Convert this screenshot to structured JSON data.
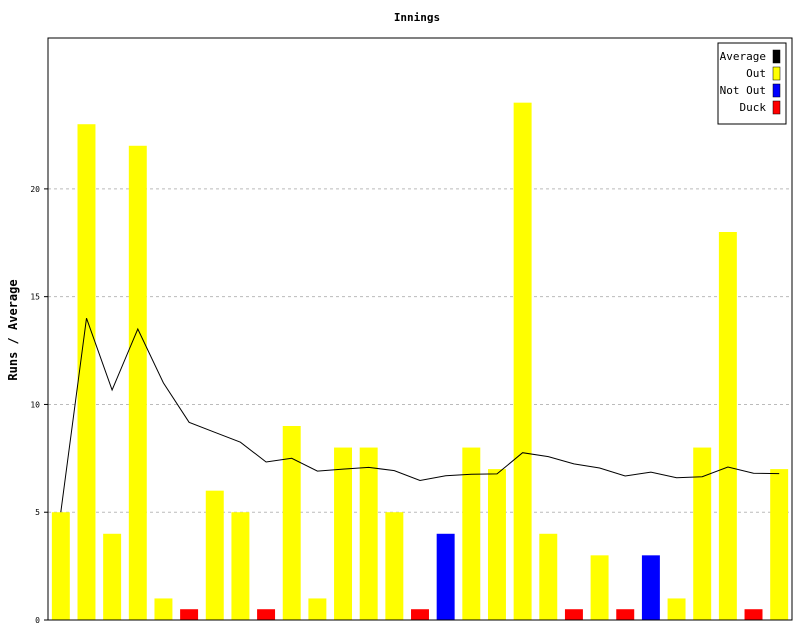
{
  "chart_data": {
    "type": "bar",
    "title": "Innings",
    "ylabel": "Runs / Average",
    "xlabel": "",
    "ylim": [
      0,
      27
    ],
    "yticks": [
      "0",
      "5",
      "10",
      "15",
      "20"
    ],
    "ytick_values": [
      0,
      5,
      10,
      15,
      20
    ],
    "grid": true,
    "legend_position": "top-right",
    "legend": [
      {
        "label": "Average",
        "color": "#000000"
      },
      {
        "label": "Out",
        "color": "#ffff00"
      },
      {
        "label": "Not Out",
        "color": "#0000ff"
      },
      {
        "label": "Duck",
        "color": "#ff0000"
      }
    ],
    "bars": [
      {
        "value": 5,
        "kind": "Out"
      },
      {
        "value": 23,
        "kind": "Out"
      },
      {
        "value": 4,
        "kind": "Out"
      },
      {
        "value": 22,
        "kind": "Out"
      },
      {
        "value": 1,
        "kind": "Out"
      },
      {
        "value": 0.5,
        "kind": "Duck"
      },
      {
        "value": 6,
        "kind": "Out"
      },
      {
        "value": 5,
        "kind": "Out"
      },
      {
        "value": 0.5,
        "kind": "Duck"
      },
      {
        "value": 9,
        "kind": "Out"
      },
      {
        "value": 1,
        "kind": "Out"
      },
      {
        "value": 8,
        "kind": "Out"
      },
      {
        "value": 8,
        "kind": "Out"
      },
      {
        "value": 5,
        "kind": "Out"
      },
      {
        "value": 0.5,
        "kind": "Duck"
      },
      {
        "value": 4,
        "kind": "Not Out"
      },
      {
        "value": 8,
        "kind": "Out"
      },
      {
        "value": 7,
        "kind": "Out"
      },
      {
        "value": 24,
        "kind": "Out"
      },
      {
        "value": 4,
        "kind": "Out"
      },
      {
        "value": 0.5,
        "kind": "Duck"
      },
      {
        "value": 3,
        "kind": "Out"
      },
      {
        "value": 0.5,
        "kind": "Duck"
      },
      {
        "value": 3,
        "kind": "Not Out"
      },
      {
        "value": 1,
        "kind": "Out"
      },
      {
        "value": 8,
        "kind": "Out"
      },
      {
        "value": 18,
        "kind": "Out"
      },
      {
        "value": 0.5,
        "kind": "Duck"
      },
      {
        "value": 7,
        "kind": "Out"
      }
    ],
    "average": [
      5,
      14,
      10.67,
      13.5,
      11,
      9.17,
      8.71,
      8.25,
      7.33,
      7.5,
      6.91,
      7,
      7.08,
      6.93,
      6.47,
      6.69,
      6.76,
      6.78,
      7.76,
      7.58,
      7.24,
      7.05,
      6.68,
      6.86,
      6.6,
      6.65,
      7.1,
      6.81,
      6.79
    ]
  }
}
